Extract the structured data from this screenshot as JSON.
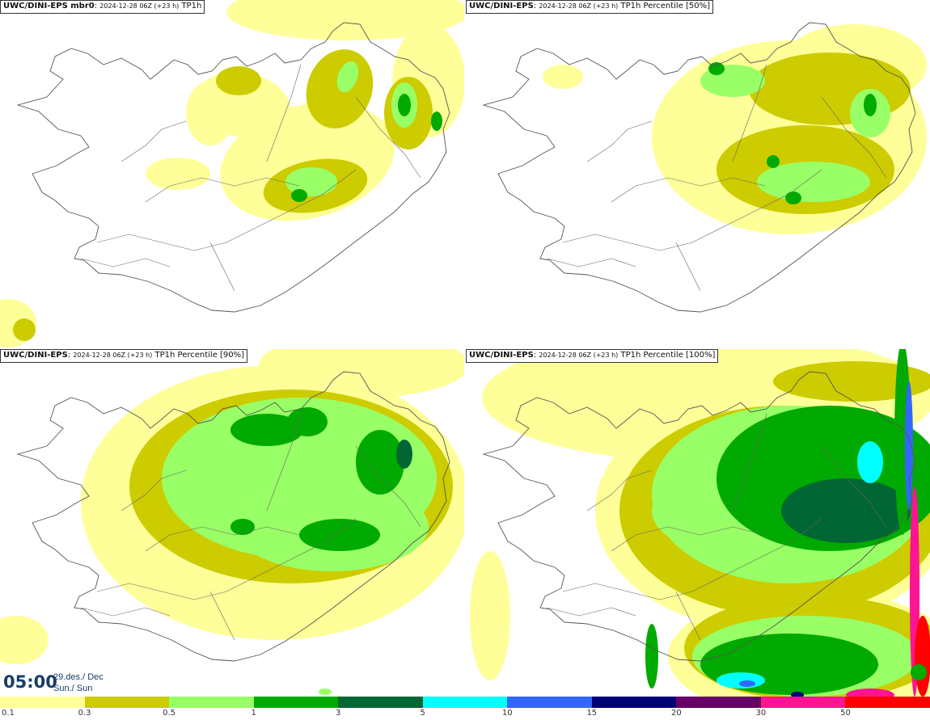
{
  "panels": [
    {
      "model": "UWC/DINI-EPS mbr0",
      "run": "2024-12-28 06Z (+23 h)",
      "field": "TP1h"
    },
    {
      "model": "UWC/DINI-EPS",
      "run": "2024-12-28 06Z (+23 h)",
      "field": "TP1h Percentile [50%]"
    },
    {
      "model": "UWC/DINI-EPS",
      "run": "2024-12-28 06Z (+23 h)",
      "field": "TP1h Percentile [90%]"
    },
    {
      "model": "UWC/DINI-EPS",
      "run": "2024-12-28 06Z (+23 h)",
      "field": "TP1h Percentile [100%]"
    }
  ],
  "time": {
    "clock": "05:00",
    "date": "29.des./ Dec",
    "day": "Sun./ Sun"
  },
  "colorbar": {
    "levels": [
      "0.1",
      "0.3",
      "0.5",
      "1",
      "3",
      "5",
      "10",
      "15",
      "20",
      "30",
      "50"
    ],
    "colors": [
      "#ffff99",
      "#cccc00",
      "#99ff66",
      "#00aa00",
      "#006633",
      "#00ffff",
      "#3366ff",
      "#000077",
      "#660066",
      "#ff1493",
      "#ff0000"
    ]
  }
}
